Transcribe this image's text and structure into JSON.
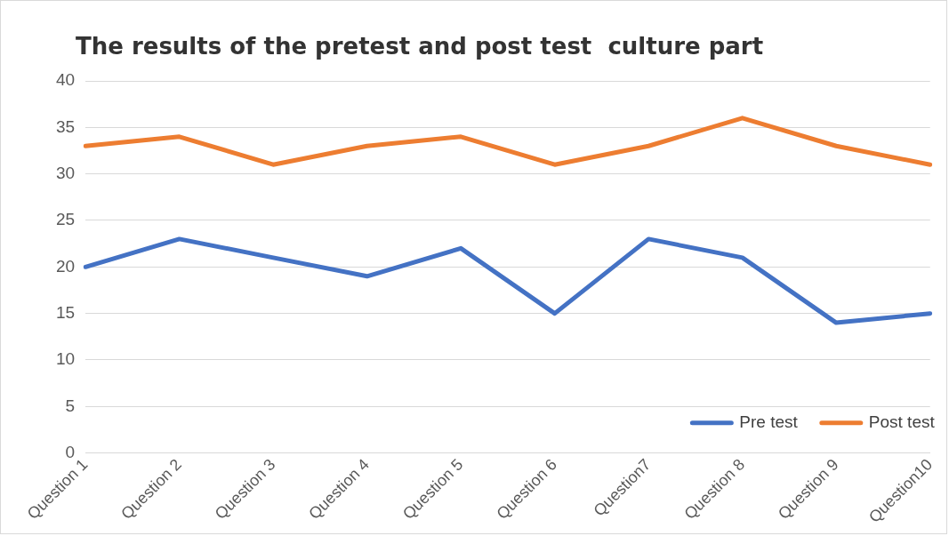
{
  "chart_data": {
    "type": "line",
    "title": "The results of the pretest and post test  culture part",
    "categories": [
      "Question 1",
      "Question 2",
      "Question 3",
      "Question 4",
      "Question 5",
      "Question 6",
      "Question7",
      "Question 8",
      "Question 9",
      "Question10"
    ],
    "series": [
      {
        "name": "Pre test",
        "color": "#4472c4",
        "values": [
          20,
          23,
          21,
          19,
          22,
          15,
          23,
          21,
          14,
          15
        ]
      },
      {
        "name": "Post test",
        "color": "#ed7d31",
        "values": [
          33,
          34,
          31,
          33,
          34,
          31,
          33,
          36,
          33,
          31
        ]
      }
    ],
    "ylim": [
      0,
      40
    ],
    "yticks": [
      0,
      5,
      10,
      15,
      20,
      25,
      30,
      35,
      40
    ],
    "grid": "y",
    "legend": "bottom right",
    "marker": "none",
    "line_style": "solid"
  }
}
